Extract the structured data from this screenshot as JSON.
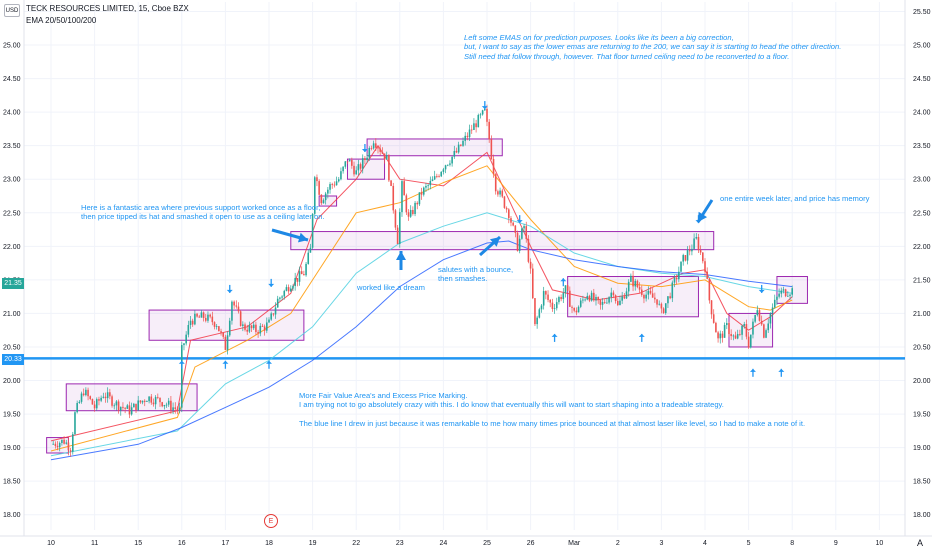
{
  "header": {
    "currency_button": "USD",
    "symbol_title": "TECK RESOURCES LIMITED, 15, Cboe BZX",
    "indicator_label": "EMA 20/50/100/200"
  },
  "price_tags": {
    "last_price": "21.35",
    "hline_price": "20.33"
  },
  "annotations": {
    "top_note": "Left some EMAS on for prediction purposes. Looks like its been a big correction,\nbut, I want to say as the lower emas are returning to the 200, we can say it is starting to head the other direction.\nStill need that follow through, however. That floor turned ceiling need to be reconverted to a floor.",
    "support_floor_note": "Here is a fantastic area where previous support worked once as a floor,\nthen price tipped its hat and smashed it open to use as a ceiling later on.",
    "worked_note": "worked like a dream",
    "salutes_note": "salutes with a bounce,\nthen smashes.",
    "memory_note": "one entire week later, and price has memory",
    "fair_value_note": "More Fair Value Area's and Excess Price Marking.\nI am trying not to go absolutely crazy with this. I do know that eventually this will want to start shaping into a tradeable strategy.\n\nThe blue line I drew in just because it was remarkable to me how many times price bounced at that almost laser like level, so I had to make a note of it."
  },
  "earnings_badge": "E",
  "footer_logo": "A",
  "colors": {
    "up_candle": "#26a69a",
    "down_candle": "#ef5350",
    "zone_border": "#9c27b0",
    "zone_fill": "rgba(156,39,176,0.08)",
    "hline": "#2196f3",
    "ema20": "#f23645",
    "ema50": "#ff9800",
    "ema100": "#4dd0e1",
    "ema200": "#2962ff",
    "grid": "#f0f3fa"
  },
  "chart_data": {
    "type": "candlestick",
    "title": "TECK RESOURCES LIMITED, 15, Cboe BZX",
    "symbol": "TECK",
    "interval": "15",
    "exchange": "Cboe BZX",
    "currency": "USD",
    "ylim": [
      17.75,
      25.6
    ],
    "y_ticks_left": [
      "18.00",
      "18.50",
      "19.00",
      "19.50",
      "20.00",
      "20.50",
      "21.00",
      "21.50",
      "22.00",
      "22.50",
      "23.00",
      "23.50",
      "24.00",
      "24.50",
      "25.00"
    ],
    "y_ticks_right": [
      "18.00",
      "18.50",
      "19.00",
      "19.50",
      "20.00",
      "20.50",
      "21.00",
      "21.50",
      "22.00",
      "22.50",
      "23.00",
      "23.50",
      "24.00",
      "24.50",
      "25.00",
      "25.50"
    ],
    "x_labels": [
      "10",
      "11",
      "15",
      "16",
      "17",
      "18",
      "19",
      "22",
      "23",
      "24",
      "25",
      "26",
      "Mar",
      "2",
      "3",
      "4",
      "5",
      "8",
      "9",
      "10"
    ],
    "last_price": 21.35,
    "horizontal_line": 20.33,
    "grid": true,
    "legend": "top-left",
    "session_path": [
      [
        0,
        19.05
      ],
      [
        0.3,
        19.1
      ],
      [
        0.45,
        19.0
      ],
      [
        0.55,
        19.5
      ],
      [
        0.75,
        19.85
      ],
      [
        1,
        19.6
      ],
      [
        1.2,
        19.8
      ],
      [
        1.5,
        19.65
      ],
      [
        1.8,
        19.55
      ],
      [
        2.2,
        19.75
      ],
      [
        2.5,
        19.7
      ],
      [
        2.8,
        19.6
      ],
      [
        2.95,
        19.55
      ],
      [
        3,
        20.45
      ],
      [
        3.2,
        20.9
      ],
      [
        3.5,
        20.95
      ],
      [
        3.8,
        20.85
      ],
      [
        4,
        20.5
      ],
      [
        4.15,
        21.2
      ],
      [
        4.4,
        20.8
      ],
      [
        4.7,
        20.75
      ],
      [
        4.9,
        20.8
      ],
      [
        5.0,
        20.85
      ],
      [
        5.2,
        21.2
      ],
      [
        5.5,
        21.45
      ],
      [
        5.8,
        21.6
      ],
      [
        5.95,
        21.95
      ],
      [
        6.05,
        23.1
      ],
      [
        6.2,
        22.7
      ],
      [
        6.4,
        22.9
      ],
      [
        6.6,
        23.0
      ],
      [
        6.8,
        23.3
      ],
      [
        7,
        23.1
      ],
      [
        7.2,
        23.3
      ],
      [
        7.4,
        23.6
      ],
      [
        7.7,
        23.3
      ],
      [
        7.95,
        22.1
      ],
      [
        8.05,
        22.9
      ],
      [
        8.2,
        22.4
      ],
      [
        8.5,
        22.8
      ],
      [
        8.8,
        23.0
      ],
      [
        9,
        23.2
      ],
      [
        9.3,
        23.4
      ],
      [
        9.5,
        23.6
      ],
      [
        9.7,
        23.8
      ],
      [
        9.95,
        24.0
      ],
      [
        10.05,
        23.6
      ],
      [
        10.2,
        22.9
      ],
      [
        10.5,
        22.5
      ],
      [
        10.7,
        22.0
      ],
      [
        10.85,
        22.3
      ],
      [
        11.0,
        21.6
      ],
      [
        11.1,
        20.8
      ],
      [
        11.3,
        21.3
      ],
      [
        11.5,
        21.1
      ],
      [
        11.8,
        21.35
      ],
      [
        12,
        21.0
      ],
      [
        12.3,
        21.3
      ],
      [
        12.6,
        21.1
      ],
      [
        12.9,
        21.35
      ],
      [
        13,
        21.1
      ],
      [
        13.3,
        21.5
      ],
      [
        13.6,
        21.3
      ],
      [
        13.9,
        21.2
      ],
      [
        14,
        21.0
      ],
      [
        14.2,
        21.3
      ],
      [
        14.5,
        21.8
      ],
      [
        14.8,
        22.1
      ],
      [
        15,
        21.7
      ],
      [
        15.1,
        21.2
      ],
      [
        15.3,
        20.6
      ],
      [
        15.5,
        20.8
      ],
      [
        15.7,
        20.6
      ],
      [
        15.9,
        20.8
      ],
      [
        16,
        20.55
      ],
      [
        16.2,
        21.1
      ],
      [
        16.35,
        20.7
      ],
      [
        16.5,
        21.0
      ],
      [
        16.7,
        21.3
      ],
      [
        17.0,
        21.35
      ]
    ],
    "series": [
      {
        "name": "EMA 20",
        "values": [
          [
            0,
            19.1
          ],
          [
            2.9,
            19.55
          ],
          [
            3.2,
            20.6
          ],
          [
            4.5,
            20.8
          ],
          [
            5.5,
            21.3
          ],
          [
            6.1,
            22.4
          ],
          [
            7,
            23.0
          ],
          [
            7.5,
            23.5
          ],
          [
            8,
            23.0
          ],
          [
            9,
            22.9
          ],
          [
            10,
            23.4
          ],
          [
            11,
            22.0
          ],
          [
            11.5,
            21.35
          ],
          [
            12.5,
            21.2
          ],
          [
            13.5,
            21.3
          ],
          [
            14.5,
            21.6
          ],
          [
            15,
            21.65
          ],
          [
            15.5,
            21.0
          ],
          [
            16,
            20.75
          ],
          [
            16.5,
            20.95
          ],
          [
            17,
            21.25
          ]
        ]
      },
      {
        "name": "EMA 50",
        "values": [
          [
            0,
            18.95
          ],
          [
            2.9,
            19.45
          ],
          [
            3.3,
            20.2
          ],
          [
            4.5,
            20.6
          ],
          [
            5.5,
            21.0
          ],
          [
            6.2,
            21.7
          ],
          [
            7,
            22.5
          ],
          [
            8,
            22.65
          ],
          [
            9,
            22.95
          ],
          [
            10,
            23.2
          ],
          [
            11,
            22.4
          ],
          [
            12,
            21.7
          ],
          [
            13,
            21.45
          ],
          [
            14,
            21.4
          ],
          [
            15,
            21.5
          ],
          [
            16,
            21.1
          ],
          [
            16.5,
            21.05
          ],
          [
            17,
            21.2
          ]
        ]
      },
      {
        "name": "EMA 100",
        "values": [
          [
            0,
            18.88
          ],
          [
            2.9,
            19.25
          ],
          [
            4,
            19.95
          ],
          [
            5,
            20.3
          ],
          [
            6,
            20.8
          ],
          [
            7,
            21.6
          ],
          [
            8,
            22.05
          ],
          [
            9,
            22.3
          ],
          [
            10,
            22.5
          ],
          [
            11,
            22.3
          ],
          [
            12,
            21.9
          ],
          [
            13,
            21.7
          ],
          [
            14,
            21.6
          ],
          [
            15,
            21.55
          ],
          [
            16,
            21.4
          ],
          [
            17,
            21.3
          ]
        ]
      },
      {
        "name": "EMA 200",
        "values": [
          [
            0,
            18.82
          ],
          [
            2,
            19.05
          ],
          [
            3,
            19.3
          ],
          [
            4,
            19.6
          ],
          [
            5,
            19.9
          ],
          [
            6,
            20.3
          ],
          [
            7,
            20.8
          ],
          [
            8,
            21.4
          ],
          [
            9,
            21.8
          ],
          [
            10,
            22.05
          ],
          [
            10.5,
            22.08
          ],
          [
            11,
            21.95
          ],
          [
            12,
            21.8
          ],
          [
            13,
            21.7
          ],
          [
            14,
            21.62
          ],
          [
            15,
            21.58
          ],
          [
            16,
            21.48
          ],
          [
            17,
            21.4
          ]
        ]
      }
    ],
    "zones": [
      {
        "x0": -0.1,
        "x1": 0.4,
        "y0": 18.92,
        "y1": 19.15
      },
      {
        "x0": 0.35,
        "x1": 3.35,
        "y0": 19.55,
        "y1": 19.95
      },
      {
        "x0": 2.25,
        "x1": 5.8,
        "y0": 20.6,
        "y1": 21.05
      },
      {
        "x0": 6.15,
        "x1": 6.55,
        "y0": 22.6,
        "y1": 22.75
      },
      {
        "x0": 6.8,
        "x1": 7.65,
        "y0": 23.0,
        "y1": 23.3
      },
      {
        "x0": 7.25,
        "x1": 10.35,
        "y0": 23.35,
        "y1": 23.6
      },
      {
        "x0": 5.5,
        "x1": 15.2,
        "y0": 21.95,
        "y1": 22.22
      },
      {
        "x0": 11.85,
        "x1": 14.85,
        "y0": 20.95,
        "y1": 21.55
      },
      {
        "x0": 15.55,
        "x1": 16.55,
        "y0": 20.5,
        "y1": 21.0
      },
      {
        "x0": 16.65,
        "x1": 17.35,
        "y0": 21.15,
        "y1": 21.55
      }
    ],
    "arrows": [
      {
        "x": 3.0,
        "y": 20.22,
        "dir": "up"
      },
      {
        "x": 4.0,
        "y": 20.22,
        "dir": "up"
      },
      {
        "x": 5.0,
        "y": 20.22,
        "dir": "up"
      },
      {
        "x": 4.1,
        "y": 21.38,
        "dir": "down"
      },
      {
        "x": 5.05,
        "y": 21.47,
        "dir": "down"
      },
      {
        "x": 7.2,
        "y": 23.48,
        "dir": "down"
      },
      {
        "x": 9.95,
        "y": 24.12,
        "dir": "down"
      },
      {
        "x": 10.75,
        "y": 22.42,
        "dir": "down"
      },
      {
        "x": 11.55,
        "y": 20.62,
        "dir": "up"
      },
      {
        "x": 13.55,
        "y": 20.62,
        "dir": "up"
      },
      {
        "x": 14.85,
        "y": 22.42,
        "dir": "down"
      },
      {
        "x": 16.3,
        "y": 21.38,
        "dir": "down"
      },
      {
        "x": 16.1,
        "y": 20.1,
        "dir": "up"
      },
      {
        "x": 16.75,
        "y": 20.1,
        "dir": "up"
      },
      {
        "x": 11.75,
        "y": 21.45,
        "dir": "up"
      }
    ]
  }
}
